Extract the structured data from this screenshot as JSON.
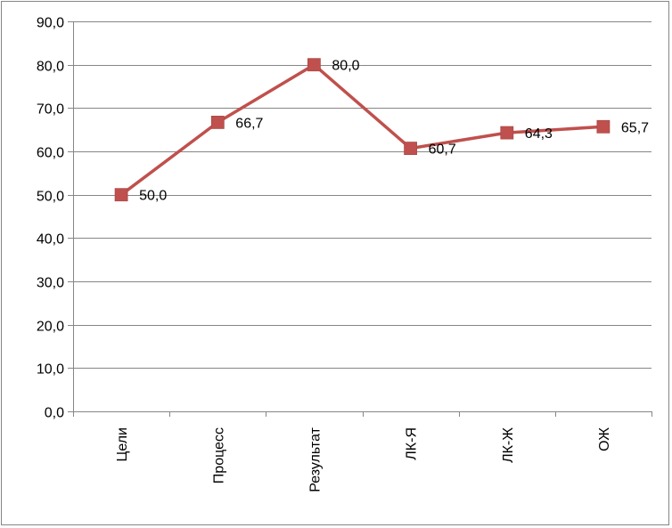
{
  "chart_data": {
    "type": "line",
    "categories": [
      "Цели",
      "Процесс",
      "Результат",
      "ЛК-Я",
      "ЛК-Ж",
      "ОЖ"
    ],
    "series": [
      {
        "values": [
          50.0,
          66.7,
          80.0,
          60.7,
          64.3,
          65.7
        ],
        "labels": [
          "50,0",
          "66,7",
          "80,0",
          "60,7",
          "64,3",
          "65,7"
        ]
      }
    ],
    "ylim": [
      0,
      90
    ],
    "yticks": [
      0,
      10,
      20,
      30,
      40,
      50,
      60,
      70,
      80,
      90
    ],
    "ytick_labels": [
      "0,0",
      "10,0",
      "20,0",
      "30,0",
      "40,0",
      "50,0",
      "60,0",
      "70,0",
      "80,0",
      "90,0"
    ],
    "grid": true,
    "title": "",
    "xlabel": "",
    "ylabel": "",
    "line_color": "#c0504d",
    "marker_color": "#c0504d",
    "marker": "square"
  }
}
